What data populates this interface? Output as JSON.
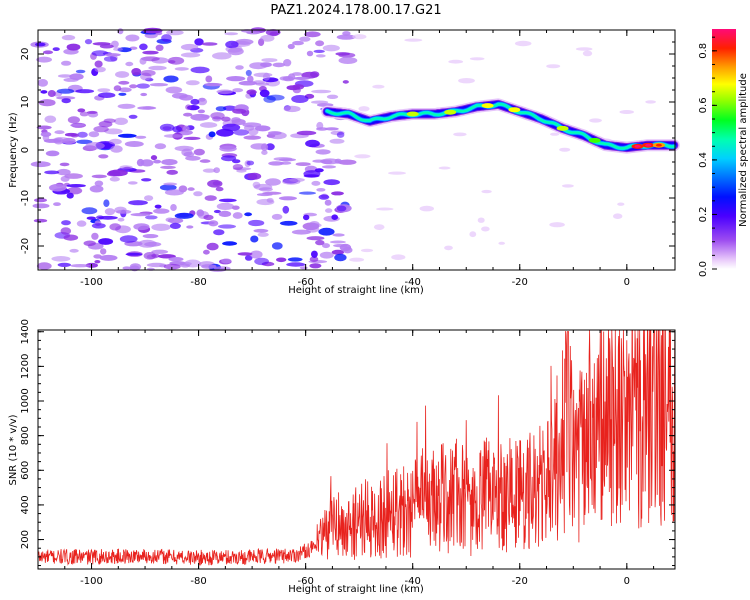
{
  "title": "PAZ1.2024.178.00.17.G21",
  "chart_data": [
    {
      "type": "heatmap",
      "title": "PAZ1.2024.178.00.17.G21",
      "xlabel": "Height of straight line (km)",
      "ylabel": "Frequency (Hz)",
      "xlim": [
        -110,
        9
      ],
      "ylim": [
        -25,
        25
      ],
      "x_ticks": [
        -100,
        -80,
        -60,
        -40,
        -20,
        0
      ],
      "y_ticks": [
        -20,
        -10,
        0,
        10,
        20
      ],
      "colorbar": {
        "label": "Normalized spectral amplitude",
        "range": [
          0.0,
          0.88
        ],
        "ticks": [
          0.0,
          0.2,
          0.4,
          0.6,
          0.8
        ],
        "colormap": [
          "#ffffff",
          "#d9a8f5",
          "#8a2be2",
          "#5a00ff",
          "#0000ff",
          "#00b0ff",
          "#00ffd0",
          "#00ff00",
          "#c8ff00",
          "#ffff00",
          "#ffa500",
          "#ff0000",
          "#ff0a6e"
        ]
      },
      "ridge": {
        "x": [
          -56,
          -52,
          -48,
          -44,
          -40,
          -36,
          -32,
          -28,
          -24,
          -20,
          -16,
          -12,
          -8,
          -4,
          0,
          4,
          8
        ],
        "y": [
          8,
          7.5,
          6,
          7,
          7.5,
          7.5,
          8,
          9,
          9.5,
          8,
          6.5,
          4.5,
          3,
          1,
          0.5,
          1,
          1
        ]
      },
      "noise_region": {
        "x_range": [
          -110,
          -56
        ],
        "y_range": [
          -25,
          25
        ]
      }
    },
    {
      "type": "line",
      "xlabel": "Height of straight line (km)",
      "ylabel": "SNR (10 * v/v)",
      "xlim": [
        -110,
        9
      ],
      "ylim": [
        30,
        1410
      ],
      "x_ticks": [
        -100,
        -80,
        -60,
        -40,
        -20,
        0
      ],
      "y_ticks": [
        200,
        400,
        600,
        800,
        1000,
        1200,
        1400
      ],
      "color": "#e8221d",
      "series": [
        {
          "x": [
            -110,
            -100,
            -90,
            -80,
            -70,
            -62,
            -58,
            -55,
            -52,
            -50,
            -47,
            -44,
            -41,
            -38,
            -35,
            -32,
            -29,
            -26,
            -23,
            -20,
            -17,
            -14,
            -12,
            -11,
            -10,
            -8,
            -6,
            -4,
            -2,
            0,
            2,
            4,
            6,
            8,
            9
          ],
          "y": [
            100,
            100,
            105,
            95,
            100,
            110,
            160,
            290,
            250,
            330,
            290,
            390,
            370,
            420,
            430,
            470,
            380,
            460,
            470,
            470,
            480,
            560,
            770,
            900,
            640,
            710,
            770,
            920,
            860,
            940,
            970,
            1040,
            1090,
            1060,
            1090
          ]
        }
      ]
    }
  ]
}
